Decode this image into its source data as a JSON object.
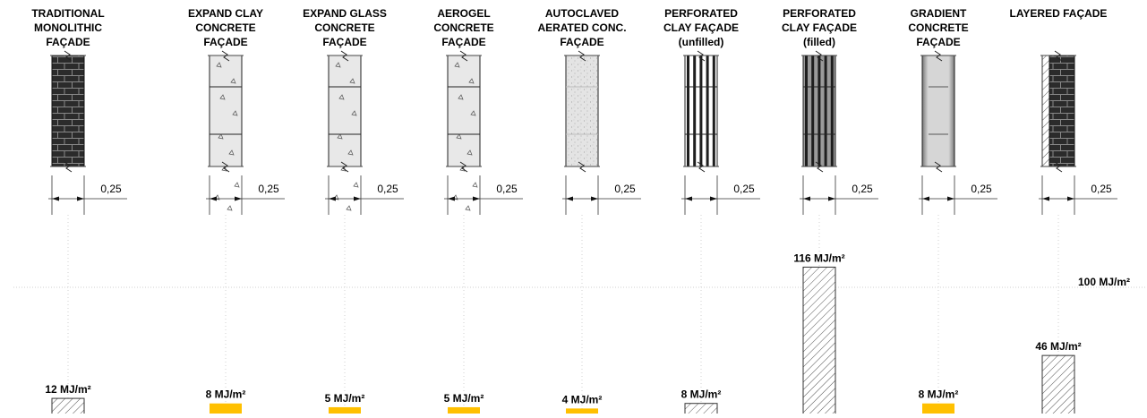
{
  "chart_data": {
    "type": "bar",
    "title": "",
    "xlabel": "",
    "ylabel": "",
    "unit": "MJ/m²",
    "reference_line": {
      "value": 100,
      "label": "100 MJ/m²"
    },
    "dimension_label": "0,25",
    "categories": [
      [
        "TRADITIONAL",
        "MONOLITHIC",
        "FAÇADE"
      ],
      [
        "EXPAND CLAY",
        "CONCRETE",
        "FAÇADE"
      ],
      [
        "EXPAND GLASS",
        "CONCRETE",
        "FAÇADE"
      ],
      [
        "AEROGEL",
        "CONCRETE",
        "FAÇADE"
      ],
      [
        "AUTOCLAVED",
        "AERATED CONC.",
        "FAÇADE"
      ],
      [
        "PERFORATED",
        "CLAY  FAÇADE",
        "(unfilled)"
      ],
      [
        "PERFORATED",
        "CLAY FAÇADE",
        "(filled)"
      ],
      [
        "GRADIENT",
        "CONCRETE",
        "FAÇADE"
      ],
      [
        "LAYERED FAÇADE"
      ]
    ],
    "values": [
      12,
      8,
      5,
      5,
      4,
      8,
      116,
      8,
      46
    ],
    "value_labels": [
      "12 MJ/m²",
      "8 MJ/m²",
      "5 MJ/m²",
      "5 MJ/m²",
      "4 MJ/m²",
      "8 MJ/m²",
      "116 MJ/m²",
      "8 MJ/m²",
      "46 MJ/m²"
    ],
    "bar_style": [
      "hatched",
      "yellow",
      "yellow",
      "yellow",
      "yellow",
      "hatched",
      "hatched",
      "yellow",
      "hatched"
    ],
    "wall_sections": [
      "brick-dark",
      "concrete-aggregate",
      "concrete-aggregate",
      "concrete-fine",
      "aerated",
      "perforated-unfilled",
      "perforated-filled",
      "gradient",
      "layered"
    ],
    "colors": {
      "yellow": "#ffc000",
      "brick": "#2b2b2b",
      "concrete": "#e6e6e6",
      "ref_line": "#d0d0d0",
      "text": "#000000"
    }
  }
}
